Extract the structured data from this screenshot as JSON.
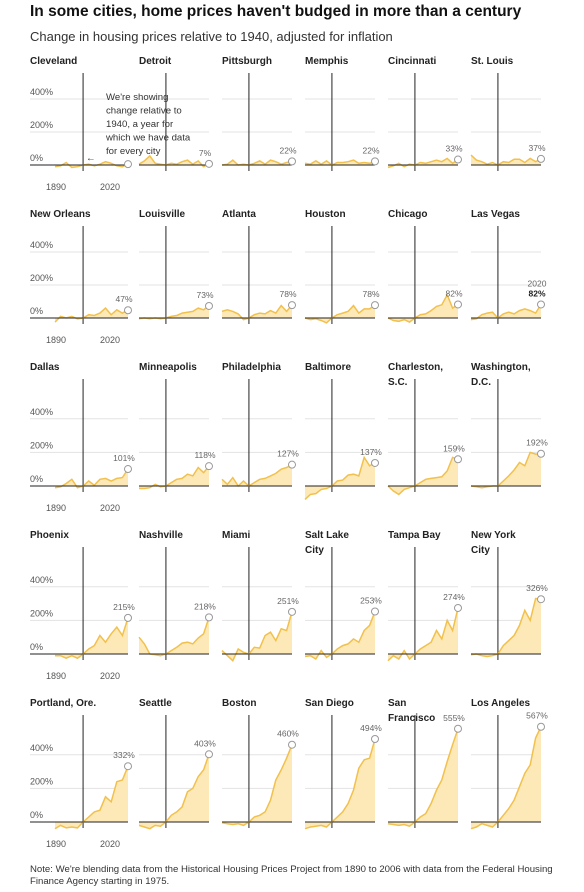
{
  "title": "In some cities, home prices haven't budged in more than a century",
  "subtitle": "Change in housing prices relative to 1940, adjusted for inflation",
  "note": "Note: We're blending data from the Historical Housing Prices Project from 1890 to 2006 with data from the Federal Housing Finance Agency starting in 1975.",
  "annotation": {
    "lines": [
      "We're showing",
      "change relative to",
      "1940, a year for",
      "which we have data",
      "for every city"
    ],
    "arrow": "←"
  },
  "colors": {
    "area": "#fde9b8",
    "line": "#f2c04c",
    "axis": "#222222",
    "grid": "#e3e3e3",
    "marker": "#999999"
  },
  "chart_data": {
    "type": "area",
    "small_multiples": true,
    "x_range": [
      1890,
      2020
    ],
    "reference_year": 1940,
    "y_ticks": [
      0,
      200,
      400
    ],
    "y_tick_labels": [
      "0%",
      "200%",
      "400%"
    ],
    "x_tick_labels": [
      "1890",
      "2020"
    ],
    "x": [
      1890,
      1900,
      1910,
      1920,
      1930,
      1940,
      1950,
      1960,
      1970,
      1980,
      1990,
      2000,
      2010,
      2020
    ],
    "cities": [
      {
        "name": "Cleveland",
        "label": "",
        "values": [
          -10,
          -5,
          15,
          -15,
          -10,
          0,
          5,
          -5,
          5,
          20,
          10,
          -5,
          -10,
          5
        ]
      },
      {
        "name": "Detroit",
        "label": "7%",
        "values": [
          5,
          25,
          55,
          10,
          5,
          0,
          10,
          5,
          20,
          30,
          5,
          25,
          -10,
          7
        ]
      },
      {
        "name": "Pittsburgh",
        "label": "22%",
        "values": [
          0,
          5,
          30,
          0,
          5,
          0,
          10,
          25,
          5,
          30,
          20,
          5,
          15,
          22
        ]
      },
      {
        "name": "Memphis",
        "label": "22%",
        "values": [
          10,
          5,
          25,
          5,
          25,
          0,
          15,
          15,
          20,
          30,
          10,
          15,
          10,
          22
        ]
      },
      {
        "name": "Cincinnati",
        "label": "33%",
        "values": [
          -15,
          -5,
          10,
          -10,
          5,
          0,
          15,
          10,
          20,
          30,
          20,
          40,
          10,
          33
        ]
      },
      {
        "name": "St. Louis",
        "label": "37%",
        "values": [
          60,
          30,
          20,
          5,
          15,
          0,
          20,
          15,
          35,
          35,
          15,
          40,
          20,
          37
        ]
      },
      {
        "name": "New Orleans",
        "label": "47%",
        "values": [
          -25,
          10,
          0,
          10,
          -5,
          0,
          20,
          15,
          30,
          60,
          20,
          50,
          30,
          47
        ]
      },
      {
        "name": "Louisville",
        "label": "73%",
        "values": [
          -5,
          0,
          -5,
          0,
          -5,
          0,
          10,
          15,
          30,
          35,
          40,
          60,
          50,
          73
        ]
      },
      {
        "name": "Atlanta",
        "label": "78%",
        "values": [
          40,
          50,
          40,
          25,
          -10,
          0,
          20,
          30,
          25,
          45,
          30,
          75,
          40,
          78
        ]
      },
      {
        "name": "Houston",
        "label": "78%",
        "values": [
          0,
          -10,
          -5,
          -15,
          -30,
          0,
          20,
          30,
          40,
          75,
          30,
          55,
          55,
          78
        ]
      },
      {
        "name": "Chicago",
        "label": "82%",
        "values": [
          0,
          -15,
          -20,
          -10,
          -25,
          0,
          20,
          25,
          45,
          70,
          80,
          140,
          60,
          82
        ]
      },
      {
        "name": "Las Vegas",
        "label": "82%",
        "sublabel": "2020",
        "values": [
          -10,
          -5,
          20,
          30,
          35,
          0,
          25,
          35,
          25,
          45,
          55,
          45,
          30,
          82
        ]
      },
      {
        "name": "Dallas",
        "label": "101%",
        "values": [
          -10,
          -5,
          15,
          40,
          -10,
          0,
          30,
          5,
          40,
          45,
          30,
          45,
          50,
          101
        ]
      },
      {
        "name": "Minneapolis",
        "label": "118%",
        "values": [
          -15,
          -15,
          -10,
          10,
          -5,
          0,
          20,
          40,
          45,
          70,
          60,
          110,
          80,
          118
        ]
      },
      {
        "name": "Philadelphia",
        "label": "127%",
        "values": [
          40,
          10,
          50,
          0,
          30,
          0,
          20,
          40,
          45,
          60,
          75,
          100,
          110,
          127
        ]
      },
      {
        "name": "Baltimore",
        "label": "137%",
        "values": [
          -80,
          -50,
          -45,
          -20,
          -15,
          0,
          30,
          35,
          65,
          70,
          60,
          170,
          120,
          137
        ]
      },
      {
        "name": "Charleston, S.C.",
        "name_lines": [
          "Charleston,",
          "S.C."
        ],
        "label": "159%",
        "values": [
          0,
          -30,
          -50,
          -20,
          -10,
          0,
          20,
          40,
          45,
          50,
          55,
          90,
          170,
          159
        ]
      },
      {
        "name": "Washington, D.C.",
        "name_lines": [
          "Washington,",
          "D.C."
        ],
        "label": "192%",
        "values": [
          0,
          -5,
          -10,
          -5,
          0,
          0,
          30,
          60,
          95,
          140,
          120,
          200,
          190,
          192
        ]
      },
      {
        "name": "Phoenix",
        "label": "215%",
        "values": [
          -10,
          -10,
          -25,
          -10,
          -25,
          0,
          30,
          50,
          110,
          70,
          120,
          160,
          110,
          215
        ]
      },
      {
        "name": "Nashville",
        "label": "218%",
        "values": [
          100,
          60,
          0,
          -5,
          -10,
          0,
          20,
          40,
          65,
          70,
          60,
          95,
          120,
          218
        ]
      },
      {
        "name": "Miami",
        "label": "251%",
        "values": [
          20,
          -10,
          -40,
          30,
          10,
          0,
          40,
          35,
          110,
          130,
          80,
          150,
          140,
          251
        ]
      },
      {
        "name": "Salt Lake City",
        "name_lines": [
          "Salt Lake",
          "City"
        ],
        "label": "253%",
        "values": [
          -15,
          -10,
          -30,
          20,
          -20,
          0,
          30,
          50,
          60,
          90,
          70,
          140,
          170,
          253
        ]
      },
      {
        "name": "Tampa Bay",
        "label": "274%",
        "values": [
          -40,
          -10,
          -30,
          20,
          -30,
          0,
          30,
          50,
          70,
          140,
          90,
          200,
          140,
          274
        ]
      },
      {
        "name": "New York City",
        "name_lines": [
          "New York",
          "City"
        ],
        "label": "326%",
        "values": [
          -5,
          0,
          -10,
          -15,
          -10,
          0,
          50,
          80,
          110,
          170,
          260,
          200,
          330,
          326
        ]
      },
      {
        "name": "Portland, Ore.",
        "label": "332%",
        "values": [
          -40,
          -20,
          -35,
          -30,
          -35,
          0,
          30,
          60,
          70,
          150,
          120,
          240,
          250,
          332
        ]
      },
      {
        "name": "Seattle",
        "label": "403%",
        "values": [
          -20,
          -30,
          -40,
          -20,
          -25,
          0,
          40,
          60,
          90,
          180,
          200,
          270,
          310,
          403
        ]
      },
      {
        "name": "Boston",
        "label": "460%",
        "values": [
          -5,
          -10,
          -15,
          -10,
          -20,
          0,
          30,
          40,
          60,
          130,
          250,
          310,
          380,
          460
        ]
      },
      {
        "name": "San Diego",
        "label": "494%",
        "values": [
          -40,
          -30,
          -25,
          -20,
          -30,
          0,
          30,
          60,
          110,
          190,
          320,
          370,
          380,
          494
        ]
      },
      {
        "name": "San Francisco",
        "name_lines": [
          "San",
          "Francisco"
        ],
        "label": "555%",
        "values": [
          -10,
          -15,
          -20,
          -15,
          -25,
          0,
          30,
          50,
          110,
          190,
          250,
          360,
          460,
          555
        ]
      },
      {
        "name": "Los Angeles",
        "label": "567%",
        "values": [
          -40,
          -30,
          -10,
          -20,
          -30,
          0,
          40,
          80,
          130,
          210,
          290,
          340,
          500,
          567
        ]
      }
    ]
  }
}
